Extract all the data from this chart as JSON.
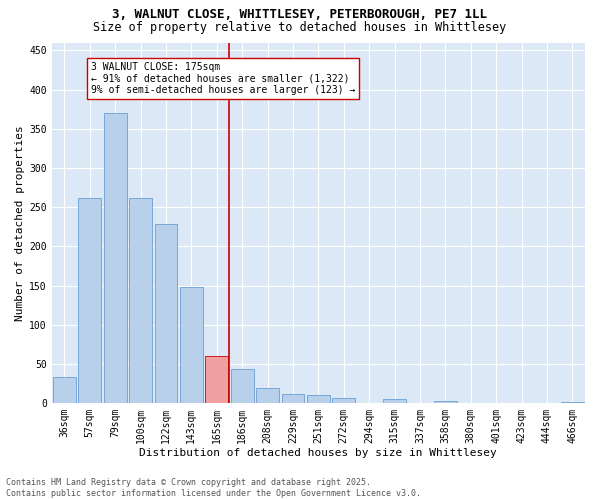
{
  "title": "3, WALNUT CLOSE, WHITTLESEY, PETERBOROUGH, PE7 1LL",
  "subtitle": "Size of property relative to detached houses in Whittlesey",
  "xlabel": "Distribution of detached houses by size in Whittlesey",
  "ylabel": "Number of detached properties",
  "bg_color": "#dce8f5",
  "bar_color": "#b8d0ea",
  "bar_edge_color": "#6a9fd8",
  "categories": [
    "36sqm",
    "57sqm",
    "79sqm",
    "100sqm",
    "122sqm",
    "143sqm",
    "165sqm",
    "186sqm",
    "208sqm",
    "229sqm",
    "251sqm",
    "272sqm",
    "294sqm",
    "315sqm",
    "337sqm",
    "358sqm",
    "380sqm",
    "401sqm",
    "423sqm",
    "444sqm",
    "466sqm"
  ],
  "values": [
    33,
    262,
    370,
    262,
    228,
    148,
    60,
    44,
    20,
    12,
    10,
    7,
    0,
    5,
    0,
    3,
    0,
    0,
    0,
    0,
    2
  ],
  "highlight_bar_index": 6,
  "highlight_bar_color": "#f0a0a0",
  "highlight_bar_edge_color": "#cc0000",
  "vline_x": 6.5,
  "vline_color": "#cc0000",
  "annotation_text": "3 WALNUT CLOSE: 175sqm\n← 91% of detached houses are smaller (1,322)\n9% of semi-detached houses are larger (123) →",
  "annotation_box_color": "#ffffff",
  "annotation_box_edge_color": "#cc0000",
  "ylim": [
    0,
    460
  ],
  "yticks": [
    0,
    50,
    100,
    150,
    200,
    250,
    300,
    350,
    400,
    450
  ],
  "footer_line1": "Contains HM Land Registry data © Crown copyright and database right 2025.",
  "footer_line2": "Contains public sector information licensed under the Open Government Licence v3.0.",
  "grid_color": "#ffffff",
  "title_fontsize": 9,
  "subtitle_fontsize": 8.5,
  "axis_label_fontsize": 8,
  "tick_fontsize": 7,
  "annotation_fontsize": 7,
  "footer_fontsize": 6
}
